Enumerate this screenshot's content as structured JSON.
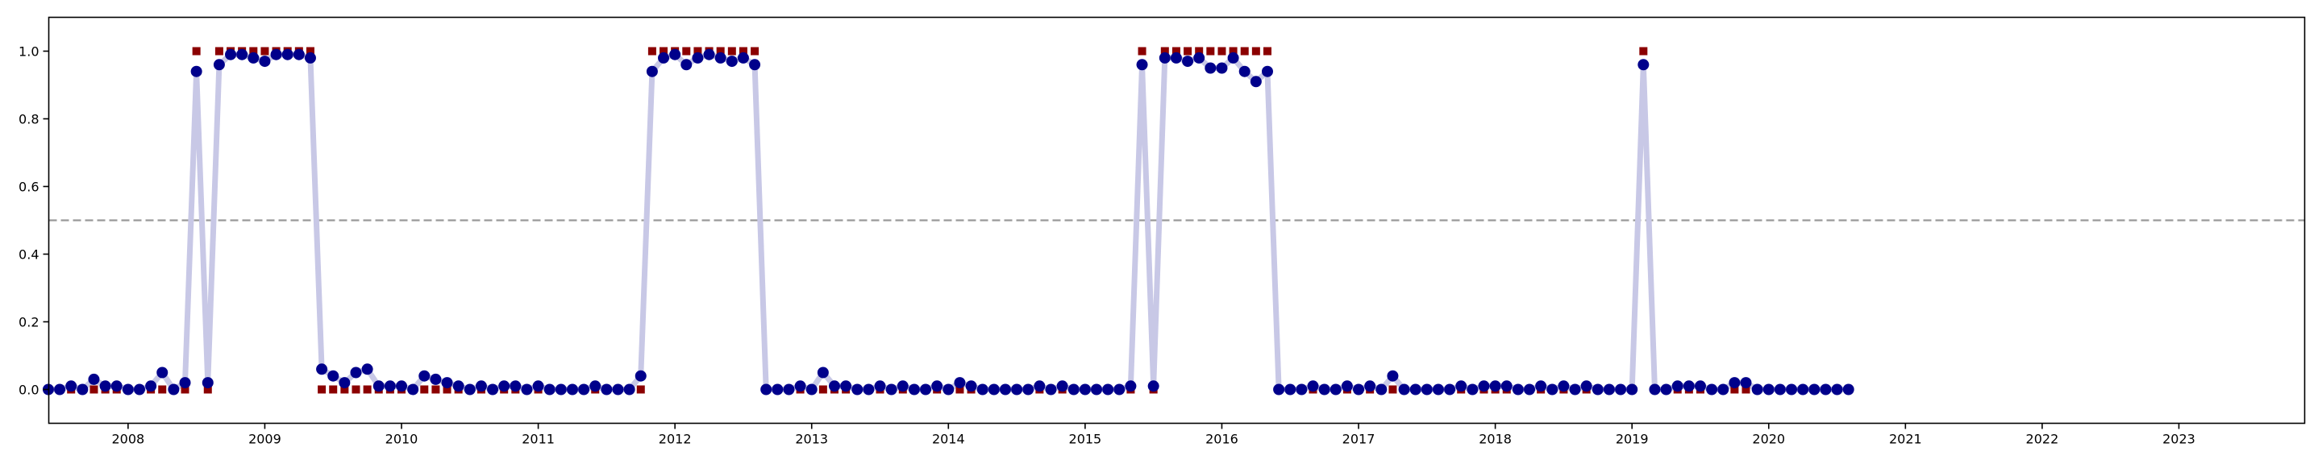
{
  "chart_data": {
    "type": "line",
    "title": "",
    "xlabel": "",
    "ylabel": "",
    "xlim": [
      2007.42,
      2023.92
    ],
    "ylim": [
      -0.1,
      1.1
    ],
    "grid": false,
    "legend": "none",
    "x_ticks": [
      {
        "value": 2008,
        "label": "2008"
      },
      {
        "value": 2009,
        "label": "2009"
      },
      {
        "value": 2010,
        "label": "2010"
      },
      {
        "value": 2011,
        "label": "2011"
      },
      {
        "value": 2012,
        "label": "2012"
      },
      {
        "value": 2013,
        "label": "2013"
      },
      {
        "value": 2014,
        "label": "2014"
      },
      {
        "value": 2015,
        "label": "2015"
      },
      {
        "value": 2016,
        "label": "2016"
      },
      {
        "value": 2017,
        "label": "2017"
      },
      {
        "value": 2018,
        "label": "2018"
      },
      {
        "value": 2019,
        "label": "2019"
      },
      {
        "value": 2020,
        "label": "2020"
      },
      {
        "value": 2021,
        "label": "2021"
      },
      {
        "value": 2022,
        "label": "2022"
      },
      {
        "value": 2023,
        "label": "2023"
      }
    ],
    "y_ticks": [
      {
        "value": 0.0,
        "label": "0.0"
      },
      {
        "value": 0.2,
        "label": "0.2"
      },
      {
        "value": 0.4,
        "label": "0.4"
      },
      {
        "value": 0.6,
        "label": "0.6"
      },
      {
        "value": 0.8,
        "label": "0.8"
      },
      {
        "value": 1.0,
        "label": "1.0"
      }
    ],
    "threshold": {
      "value": 0.5,
      "style": "dashed",
      "color": "#999999"
    },
    "start_year": 2007,
    "start_month": 6,
    "series": [
      {
        "kind": "probability",
        "color": "#00008b",
        "line_color": "#c8c8e6",
        "values": [
          0.0,
          0.0,
          0.01,
          0.0,
          0.03,
          0.01,
          0.01,
          0.0,
          0.0,
          0.01,
          0.05,
          0.0,
          0.02,
          0.94,
          0.02,
          0.96,
          0.99,
          0.99,
          0.98,
          0.97,
          0.99,
          0.99,
          0.99,
          0.98,
          0.06,
          0.04,
          0.02,
          0.05,
          0.06,
          0.01,
          0.01,
          0.01,
          0.0,
          0.04,
          0.03,
          0.02,
          0.01,
          0.0,
          0.01,
          0.0,
          0.01,
          0.01,
          0.0,
          0.01,
          0.0,
          0.0,
          0.0,
          0.0,
          0.01,
          0.0,
          0.0,
          0.0,
          0.04,
          0.94,
          0.98,
          0.99,
          0.96,
          0.98,
          0.99,
          0.98,
          0.97,
          0.98,
          0.96,
          0.0,
          0.0,
          0.0,
          0.01,
          0.0,
          0.05,
          0.01,
          0.01,
          0.0,
          0.0,
          0.01,
          0.0,
          0.01,
          0.0,
          0.0,
          0.01,
          0.0,
          0.02,
          0.01,
          0.0,
          0.0,
          0.0,
          0.0,
          0.0,
          0.01,
          0.0,
          0.01,
          0.0,
          0.0,
          0.0,
          0.0,
          0.0,
          0.01,
          0.96,
          0.01,
          0.98,
          0.98,
          0.97,
          0.98,
          0.95,
          0.95,
          0.98,
          0.94,
          0.91,
          0.94,
          0.0,
          0.0,
          0.0,
          0.01,
          0.0,
          0.0,
          0.01,
          0.0,
          0.01,
          0.0,
          0.04,
          0.0,
          0.0,
          0.0,
          0.0,
          0.0,
          0.01,
          0.0,
          0.01,
          0.01,
          0.01,
          0.0,
          0.0,
          0.01,
          0.0,
          0.01,
          0.0,
          0.01,
          0.0,
          0.0,
          0.0,
          0.0,
          0.96,
          0.0,
          0.0,
          0.01,
          0.01,
          0.01,
          0.0,
          0.0,
          0.02,
          0.02,
          0.0,
          0.0,
          0.0,
          0.0,
          0.0,
          0.0,
          0.0,
          0.0,
          0.0
        ]
      },
      {
        "kind": "label",
        "color": "#8b0000",
        "values": [
          0,
          0,
          0,
          0,
          0,
          0,
          0,
          0,
          0,
          0,
          0,
          0,
          0,
          1,
          0,
          1,
          1,
          1,
          1,
          1,
          1,
          1,
          1,
          1,
          0,
          0,
          0,
          0,
          0,
          0,
          0,
          0,
          0,
          0,
          0,
          0,
          0,
          0,
          0,
          0,
          0,
          0,
          0,
          0,
          0,
          0,
          0,
          0,
          0,
          0,
          0,
          0,
          0,
          1,
          1,
          1,
          1,
          1,
          1,
          1,
          1,
          1,
          1,
          0,
          0,
          0,
          0,
          0,
          0,
          0,
          0,
          0,
          0,
          0,
          0,
          0,
          0,
          0,
          0,
          0,
          0,
          0,
          0,
          0,
          0,
          0,
          0,
          0,
          0,
          0,
          0,
          0,
          0,
          0,
          0,
          0,
          1,
          0,
          1,
          1,
          1,
          1,
          1,
          1,
          1,
          1,
          1,
          1,
          0,
          0,
          0,
          0,
          0,
          0,
          0,
          0,
          0,
          0,
          0,
          0,
          0,
          0,
          0,
          0,
          0,
          0,
          0,
          0,
          0,
          0,
          0,
          0,
          0,
          0,
          0,
          0,
          0,
          0,
          0,
          0,
          1,
          0,
          0,
          0,
          0,
          0,
          0,
          0,
          0,
          0,
          0,
          0,
          0,
          0,
          0,
          0,
          0,
          0,
          0
        ]
      }
    ]
  }
}
